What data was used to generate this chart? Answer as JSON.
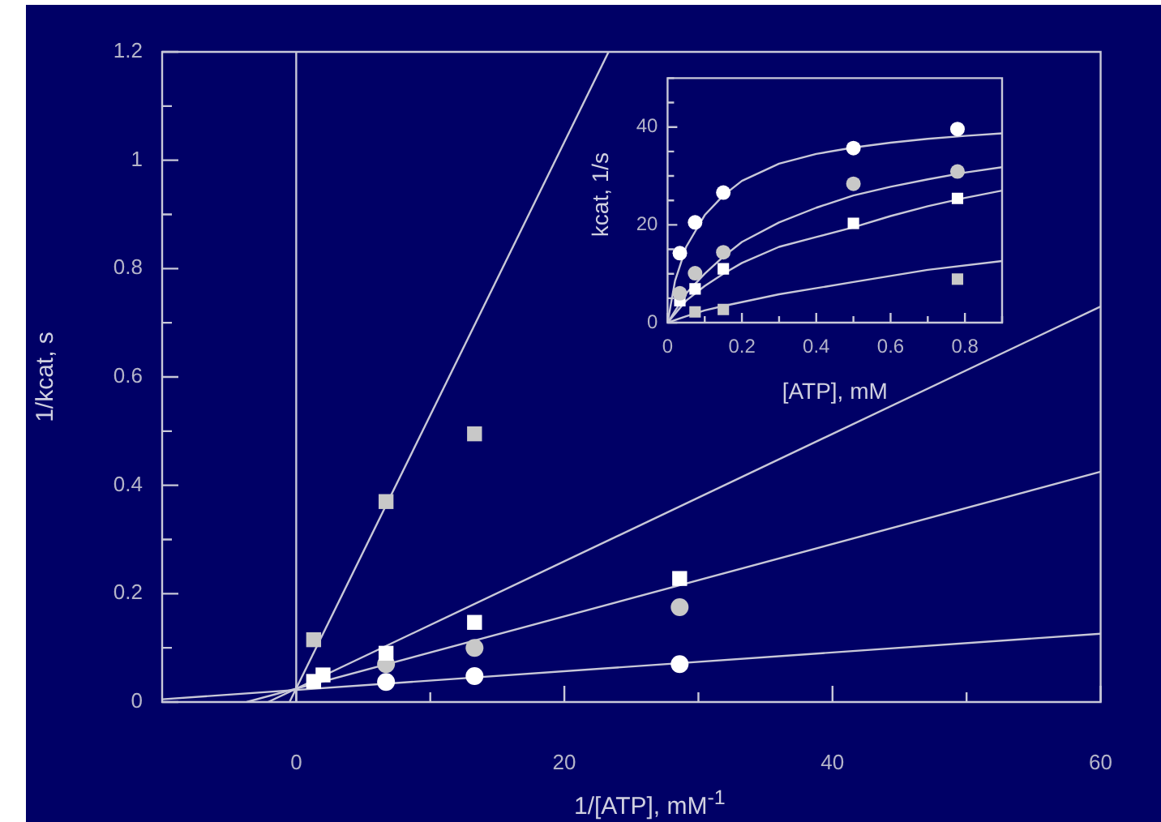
{
  "chart_data": [
    {
      "type": "scatter",
      "xlabel": "1/[ATP], mM$^{-1}$",
      "ylabel": "1/kcat, s",
      "xlim": [
        -10,
        60
      ],
      "ylim": [
        0,
        1.2
      ],
      "xticks": [
        0,
        {
          "value": 10,
          "label": null
        },
        20,
        {
          "value": 30,
          "label": null
        },
        40,
        {
          "value": 50,
          "label": null
        },
        60
      ],
      "yticks": [
        0,
        {
          "value": 0.1,
          "label": null
        },
        0.2,
        {
          "value": 0.3,
          "label": null
        },
        0.4,
        {
          "value": 0.5,
          "label": null
        },
        0.6,
        {
          "value": 0.7,
          "label": null
        },
        0.8,
        {
          "value": 0.9,
          "label": null
        },
        1,
        {
          "value": 1.1,
          "label": null
        },
        1.2
      ],
      "grid": false,
      "legend": false,
      "ref_lines": [
        {
          "axis": "x",
          "value": 0,
          "color": "#c8c8d8"
        }
      ],
      "series": [
        {
          "type": "scatter",
          "marker": "square",
          "color": "#c8c8c8",
          "x": [
            1.3,
            6.7,
            13.3
          ],
          "values": [
            0.115,
            0.37,
            0.495
          ]
        },
        {
          "type": "scatter",
          "marker": "square",
          "color": "#ffffff",
          "x": [
            1.3,
            2,
            6.7,
            13.3,
            28.6
          ],
          "values": [
            0.038,
            0.05,
            0.09,
            0.147,
            0.228
          ]
        },
        {
          "type": "scatter",
          "marker": "circle",
          "color": "#c8c8c8",
          "x": [
            6.7,
            13.3,
            28.6
          ],
          "values": [
            0.07,
            0.1,
            0.175
          ]
        },
        {
          "type": "scatter",
          "marker": "circle",
          "color": "#ffffff",
          "x": [
            6.7,
            13.3,
            28.6
          ],
          "values": [
            0.037,
            0.048,
            0.07
          ]
        },
        {
          "type": "line",
          "marker": "none",
          "color": "#c8c8d8",
          "x": [
            -0.5,
            23.3
          ],
          "values": [
            0,
            1.2
          ]
        },
        {
          "type": "line",
          "marker": "none",
          "color": "#c8c8d8",
          "x": [
            -2.1,
            60
          ],
          "values": [
            0,
            0.73
          ]
        },
        {
          "type": "line",
          "marker": "none",
          "color": "#c8c8d8",
          "x": [
            -3.7,
            60
          ],
          "values": [
            0,
            0.425
          ]
        },
        {
          "type": "line",
          "marker": "none",
          "color": "#c8c8d8",
          "x": [
            -10,
            60
          ],
          "values": [
            0.005,
            0.126
          ]
        }
      ]
    },
    {
      "type": "scatter",
      "xlabel": "[ATP], mM",
      "ylabel": "kcat, 1/s",
      "xlim": [
        0,
        0.9
      ],
      "ylim": [
        0,
        50
      ],
      "xticks": [
        0,
        {
          "value": 0.1,
          "label": null
        },
        0.2,
        {
          "value": 0.3,
          "label": null
        },
        0.4,
        {
          "value": 0.5,
          "label": null
        },
        0.6,
        {
          "value": 0.7,
          "label": null
        },
        0.8,
        {
          "value": 0.9,
          "label": null
        }
      ],
      "yticks": [
        0,
        {
          "value": 5,
          "label": null
        },
        {
          "value": 10,
          "label": null
        },
        {
          "value": 15,
          "label": null
        },
        20,
        {
          "value": 25,
          "label": null
        },
        {
          "value": 30,
          "label": null
        },
        {
          "value": 35,
          "label": null
        },
        40,
        {
          "value": 45,
          "label": null
        },
        {
          "value": 50,
          "label": null
        }
      ],
      "grid": false,
      "legend": false,
      "series": [
        {
          "type": "scatter",
          "marker": "circle",
          "color": "#ffffff",
          "x": [
            0.033,
            0.074,
            0.15,
            0.5,
            0.78
          ],
          "values": [
            14.2,
            20.5,
            26.6,
            35.7,
            39.6
          ]
        },
        {
          "type": "scatter",
          "marker": "circle",
          "color": "#c8c8c8",
          "x": [
            0.033,
            0.074,
            0.15,
            0.5,
            0.78
          ],
          "values": [
            6,
            10.1,
            14.4,
            28.4,
            30.9
          ]
        },
        {
          "type": "scatter",
          "marker": "square",
          "color": "#ffffff",
          "x": [
            0.033,
            0.074,
            0.15,
            0.5,
            0.78
          ],
          "values": [
            4.5,
            6.9,
            11,
            20.3,
            25.4
          ]
        },
        {
          "type": "scatter",
          "marker": "square",
          "color": "#c8c8c8",
          "x": [
            0.074,
            0.15,
            0.78
          ],
          "values": [
            2.2,
            2.7,
            8.9
          ]
        },
        {
          "type": "line",
          "marker": "none",
          "color": "#c8c8d8",
          "x": [
            0,
            0.02,
            0.05,
            0.1,
            0.15,
            0.2,
            0.3,
            0.4,
            0.5,
            0.6,
            0.7,
            0.8,
            0.9
          ],
          "values": [
            0,
            8.5,
            15.5,
            22,
            26,
            29,
            32.5,
            34.5,
            35.8,
            36.8,
            37.6,
            38.2,
            38.7
          ]
        },
        {
          "type": "line",
          "marker": "none",
          "color": "#c8c8d8",
          "x": [
            0,
            0.05,
            0.1,
            0.15,
            0.2,
            0.3,
            0.4,
            0.5,
            0.6,
            0.7,
            0.8,
            0.9
          ],
          "values": [
            0,
            6,
            10,
            13.5,
            16.5,
            20.5,
            23.5,
            26,
            27.8,
            29.3,
            30.7,
            31.8
          ]
        },
        {
          "type": "line",
          "marker": "none",
          "color": "#c8c8d8",
          "x": [
            0,
            0.05,
            0.1,
            0.15,
            0.2,
            0.3,
            0.4,
            0.5,
            0.6,
            0.7,
            0.8,
            0.9
          ],
          "values": [
            0,
            4.5,
            7.5,
            10,
            12.2,
            15.5,
            17.5,
            19.5,
            21.8,
            23.8,
            25.5,
            27
          ]
        },
        {
          "type": "line",
          "marker": "none",
          "color": "#c8c8d8",
          "x": [
            0,
            0.05,
            0.1,
            0.15,
            0.3,
            0.5,
            0.7,
            0.9
          ],
          "values": [
            0,
            1.3,
            2.5,
            3.4,
            5.8,
            8.3,
            10.8,
            12.6
          ]
        }
      ]
    }
  ]
}
